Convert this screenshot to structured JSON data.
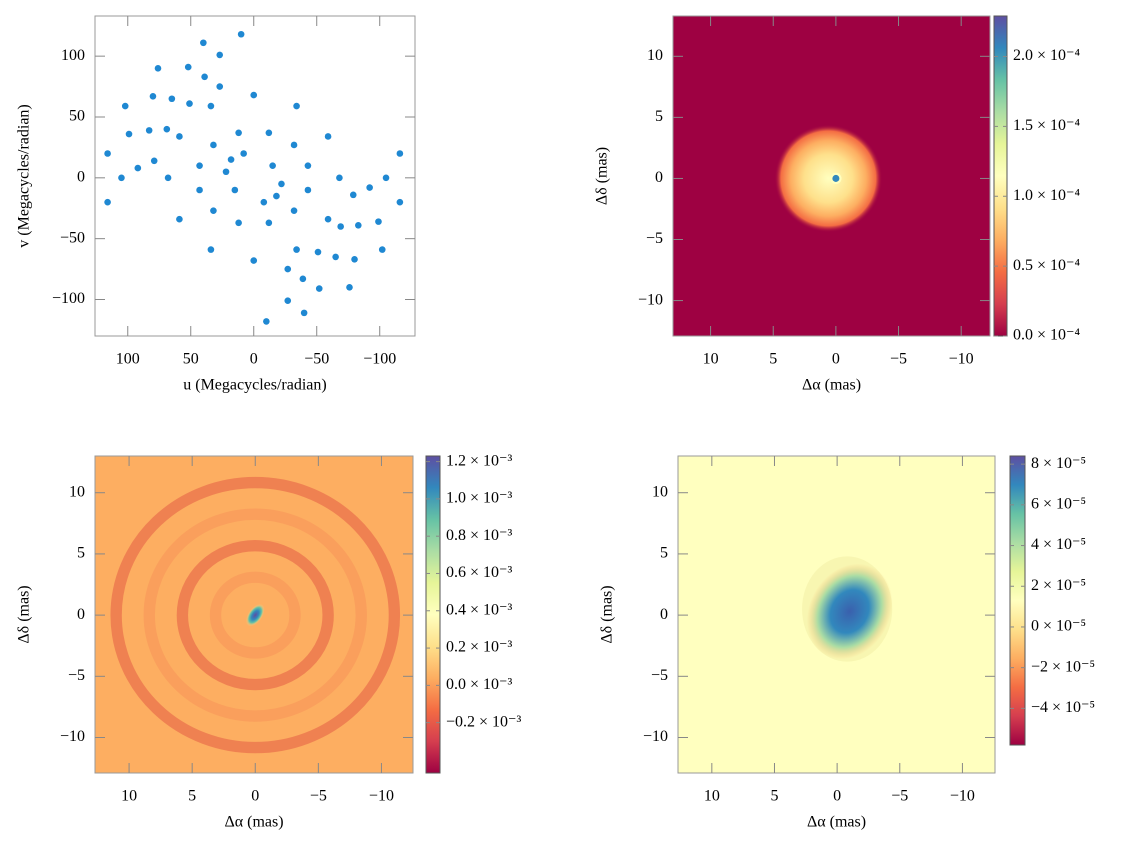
{
  "chart_data": [
    {
      "type": "scatter",
      "xlabel": "u (Megacycles/radian)",
      "ylabel": "v (Megacycles/radian)",
      "color": "#1f88d2",
      "x": [
        116,
        116,
        102,
        76,
        40,
        10,
        105,
        99,
        80,
        52,
        27,
        92,
        83,
        65,
        39,
        79,
        69,
        51,
        27,
        -116,
        -116,
        -102,
        -76,
        -40,
        -10,
        -105,
        -99,
        -80,
        -52,
        -27,
        -92,
        -83,
        -65,
        -39,
        -79,
        -69,
        -51,
        -27,
        68,
        59,
        34,
        0,
        -34,
        -59,
        -68,
        -59,
        -34,
        0,
        34,
        59,
        43,
        32,
        12,
        -12,
        -32,
        -43,
        -43,
        -32,
        -12,
        12,
        32,
        43,
        22,
        18,
        8,
        -22,
        -18,
        -8,
        -15,
        15
      ],
      "values": [
        -20,
        20,
        59,
        90,
        111,
        118,
        0,
        36,
        67,
        91,
        101,
        8,
        39,
        65,
        83,
        14,
        40,
        61,
        75,
        20,
        -20,
        -59,
        -90,
        -111,
        -118,
        0,
        -36,
        -67,
        -91,
        -101,
        -8,
        -39,
        -65,
        -83,
        -14,
        -40,
        -61,
        -75,
        0,
        34,
        59,
        68,
        59,
        34,
        0,
        -34,
        -59,
        -68,
        -59,
        -34,
        10,
        27,
        37,
        37,
        27,
        10,
        -10,
        -27,
        -37,
        -37,
        -27,
        -10,
        5,
        15,
        20,
        -5,
        -15,
        -20,
        10,
        -10
      ],
      "xlim": [
        126,
        -128
      ],
      "ylim": [
        -130,
        133
      ],
      "xticks": [
        100,
        50,
        0,
        {
          "value": -50,
          "label": "−50"
        },
        {
          "value": -100,
          "label": "−100"
        }
      ],
      "yticks": [
        {
          "value": -100,
          "label": "−100"
        },
        {
          "value": -50,
          "label": "−50"
        },
        0,
        50,
        100
      ]
    },
    {
      "type": "image",
      "xlabel": "Δα (mas)",
      "ylabel": "Δδ (mas)",
      "colormap": "Spectral",
      "xlim": [
        13,
        -12.3
      ],
      "ylim": [
        -12.9,
        13.3
      ],
      "xticks": [
        10,
        5,
        0,
        {
          "value": -5,
          "label": "−5"
        },
        {
          "value": -10,
          "label": "−10"
        }
      ],
      "yticks": [
        {
          "value": -10,
          "label": "−10"
        },
        {
          "value": -5,
          "label": "−5"
        },
        0,
        5,
        10
      ],
      "clim": [
        0,
        0.000229
      ],
      "cticks": [
        {
          "value": 0,
          "label": "0.0 × 10⁻⁴"
        },
        {
          "value": 5e-05,
          "label": "0.5 × 10⁻⁴"
        },
        {
          "value": 0.0001,
          "label": "1.0 × 10⁻⁴"
        },
        {
          "value": 0.00015,
          "label": "1.5 × 10⁻⁴"
        },
        {
          "value": 0.0002,
          "label": "2.0 × 10⁻⁴"
        }
      ]
    },
    {
      "type": "image",
      "xlabel": "Δα (mas)",
      "ylabel": "Δδ (mas)",
      "colormap": "Spectral",
      "xlim": [
        12.7,
        -12.5
      ],
      "ylim": [
        -12.9,
        13.0
      ],
      "xticks": [
        10,
        5,
        0,
        {
          "value": -5,
          "label": "−5"
        },
        {
          "value": -10,
          "label": "−10"
        }
      ],
      "yticks": [
        {
          "value": -10,
          "label": "−10"
        },
        {
          "value": -5,
          "label": "−5"
        },
        0,
        5,
        10
      ],
      "clim": [
        -0.00047,
        0.00123
      ],
      "cticks": [
        {
          "value": -0.0002,
          "label": "−0.2 × 10⁻³"
        },
        {
          "value": 0,
          "label": "0.0 × 10⁻³"
        },
        {
          "value": 0.0002,
          "label": "0.2 × 10⁻³"
        },
        {
          "value": 0.0004,
          "label": "0.4 × 10⁻³"
        },
        {
          "value": 0.0006,
          "label": "0.6 × 10⁻³"
        },
        {
          "value": 0.0008,
          "label": "0.8 × 10⁻³"
        },
        {
          "value": 0.001,
          "label": "1.0 × 10⁻³"
        },
        {
          "value": 0.0012,
          "label": "1.2 × 10⁻³"
        }
      ]
    },
    {
      "type": "image",
      "xlabel": "Δα (mas)",
      "ylabel": "Δδ (mas)",
      "colormap": "Spectral",
      "xlim": [
        12.7,
        -12.6
      ],
      "ylim": [
        -12.9,
        13.0
      ],
      "xticks": [
        10,
        5,
        0,
        {
          "value": -5,
          "label": "−5"
        },
        {
          "value": -10,
          "label": "−10"
        }
      ],
      "yticks": [
        {
          "value": -10,
          "label": "−10"
        },
        {
          "value": -5,
          "label": "−5"
        },
        0,
        5,
        10
      ],
      "clim": [
        -5.8e-05,
        8.4e-05
      ],
      "cticks": [
        {
          "value": -4e-05,
          "label": "−4 × 10⁻⁵"
        },
        {
          "value": -2e-05,
          "label": "−2 × 10⁻⁵"
        },
        {
          "value": 0,
          "label": "0 × 10⁻⁵"
        },
        {
          "value": 2e-05,
          "label": "2 × 10⁻⁵"
        },
        {
          "value": 4e-05,
          "label": "4 × 10⁻⁵"
        },
        {
          "value": 6e-05,
          "label": "6 × 10⁻⁵"
        },
        {
          "value": 8e-05,
          "label": "8 × 10⁻⁵"
        }
      ]
    }
  ]
}
